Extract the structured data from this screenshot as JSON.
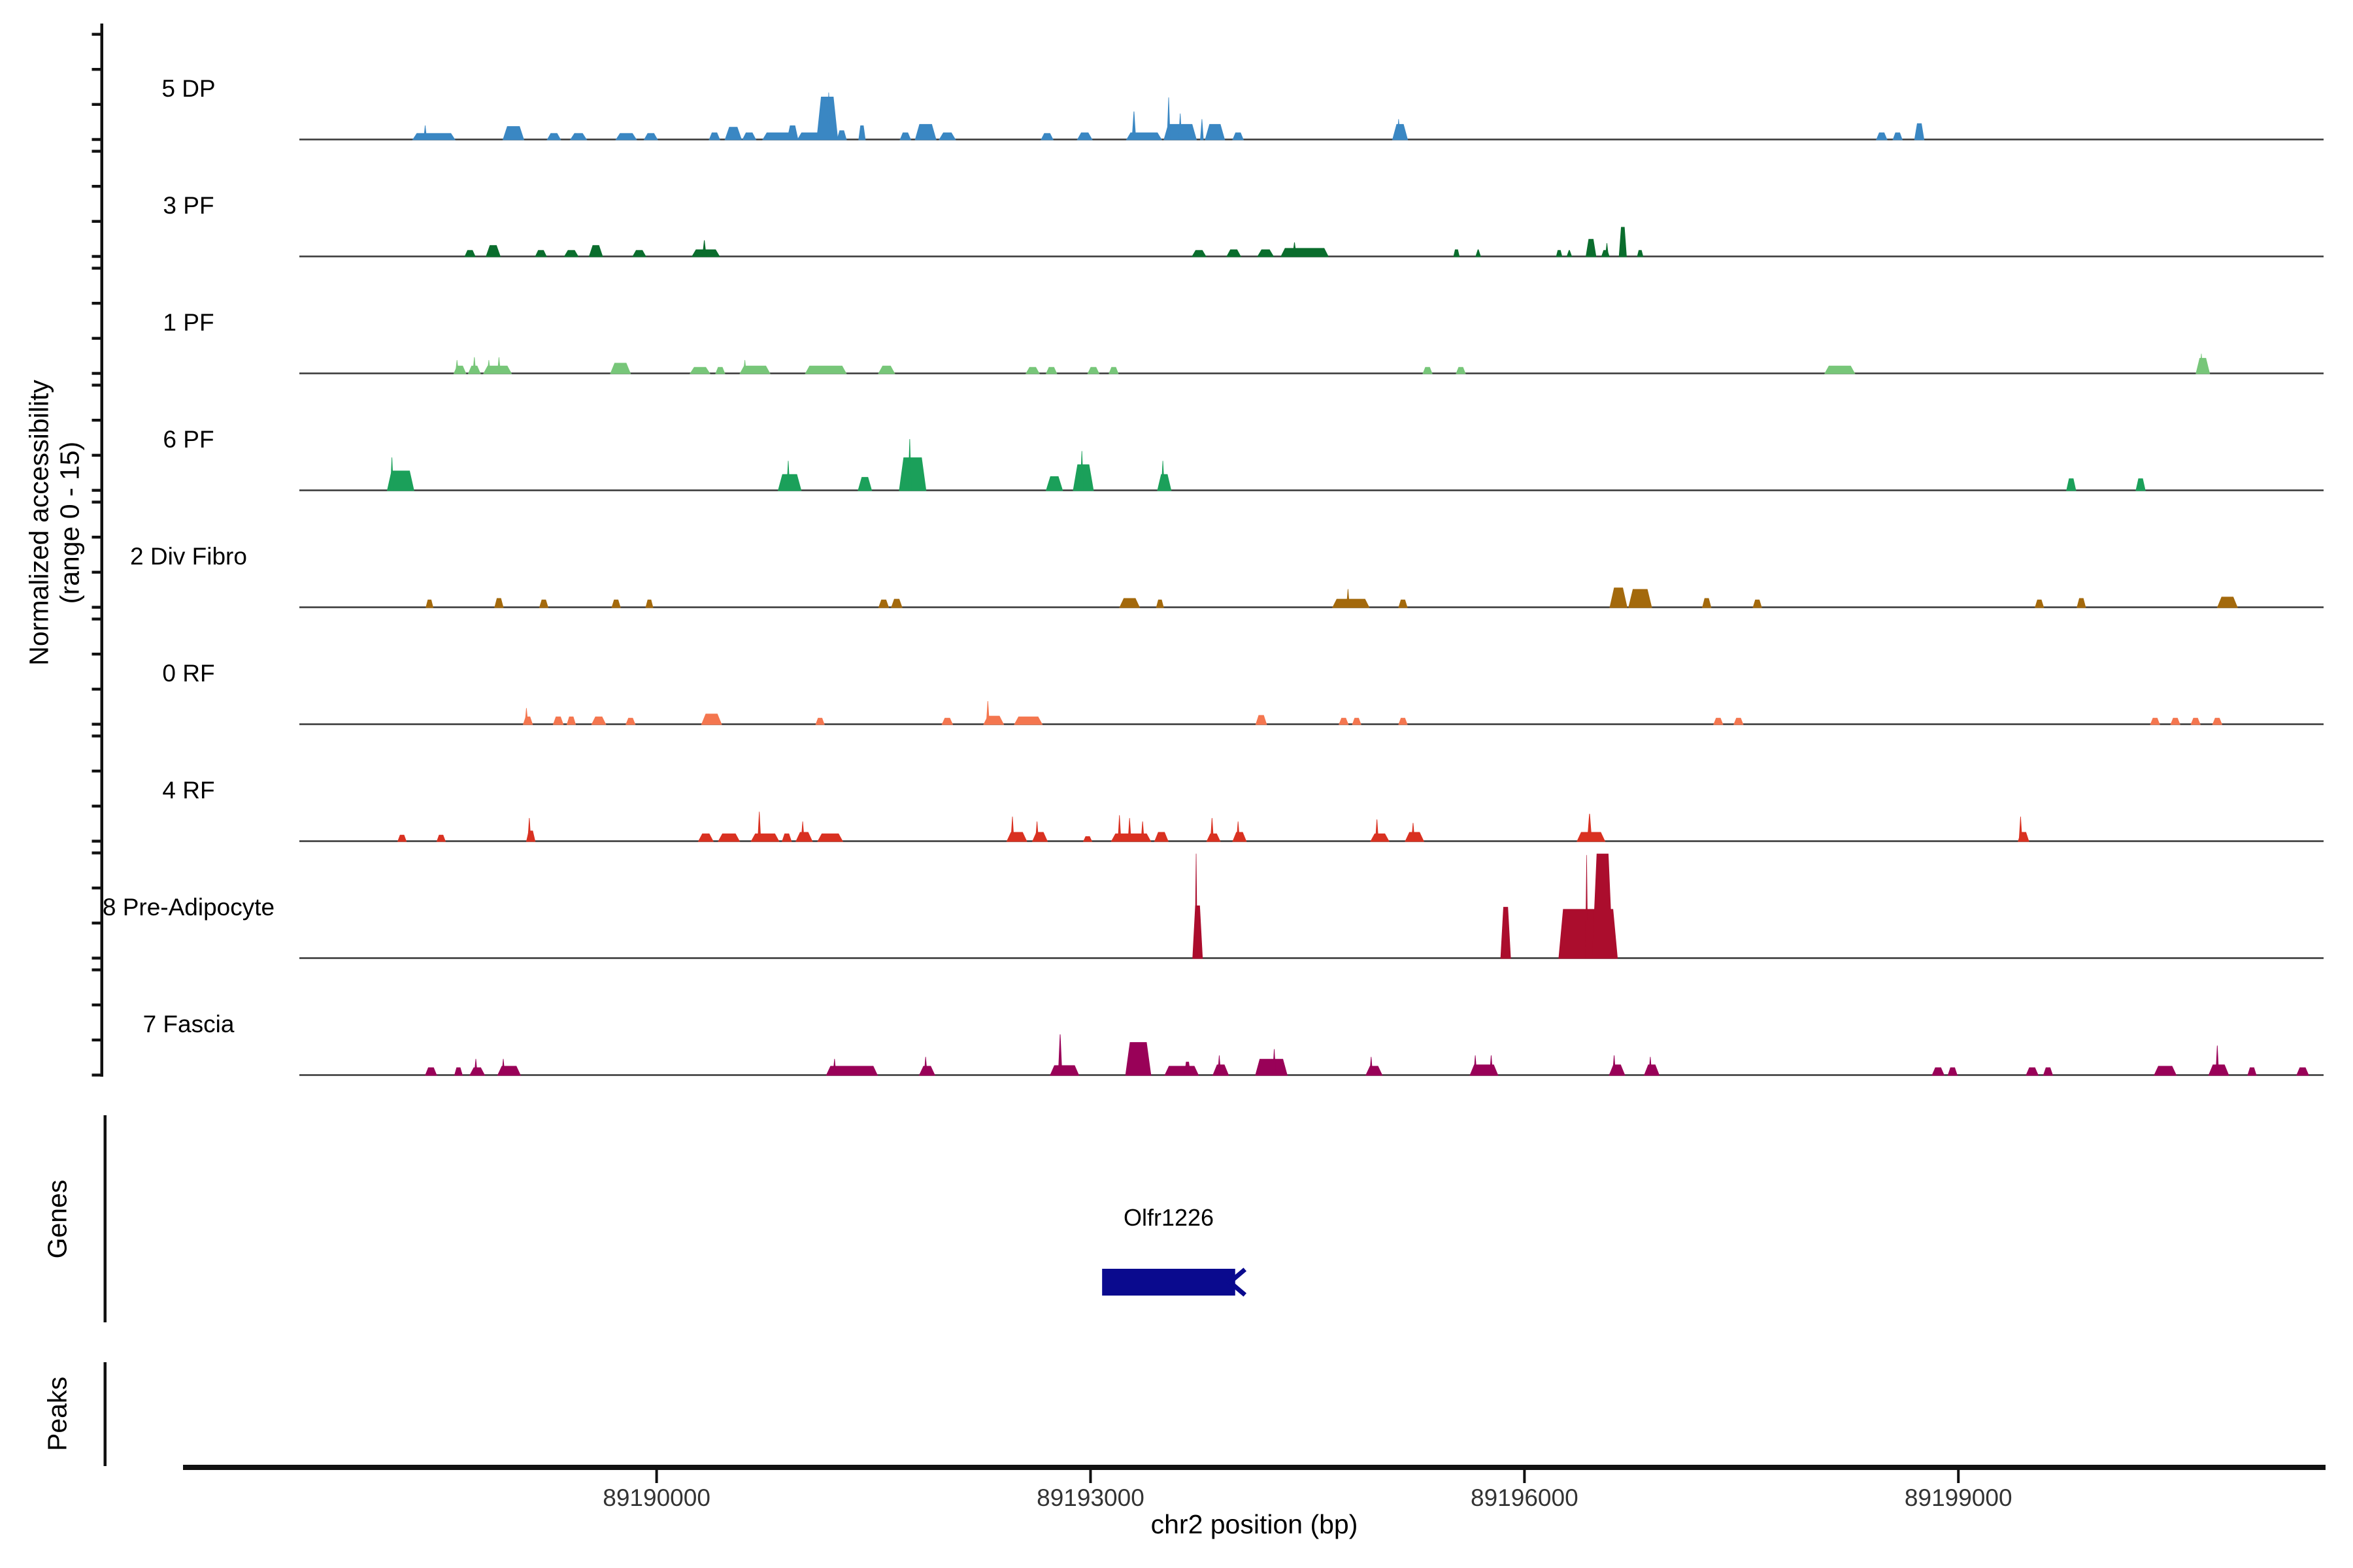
{
  "figure": {
    "background": "#ffffff"
  },
  "y_axis": {
    "label_line1": "Normalized accessibility",
    "label_line2": "(range 0 - 15)",
    "range_min": 0,
    "range_max": 15,
    "ticks_per_track": [
      0,
      5,
      10,
      15
    ]
  },
  "x_axis": {
    "title": "chr2 position (bp)",
    "ticks": [
      "89190000",
      "89193000",
      "89196000",
      "89199000"
    ]
  },
  "sections": {
    "genes_label": "Genes",
    "peaks_label": "Peaks"
  },
  "gene": {
    "name": "Olfr1226",
    "start_bp": 89193080,
    "end_bp": 89194000,
    "strand": "-",
    "color": "#0a0a8e"
  },
  "peaks_track": {
    "label": "Peaks",
    "features": []
  },
  "chart_data": {
    "type": "area",
    "title": "",
    "xlabel": "chr2 position (bp)",
    "ylabel": "Normalized accessibility (range 0 - 15)",
    "region": {
      "chrom": "chr2",
      "start": 89187530,
      "end": 89201525
    },
    "x_ticks": [
      89190000,
      89193000,
      89196000,
      89199000
    ],
    "ylim_per_track": [
      0,
      15
    ],
    "legend": "none",
    "grid": false,
    "note": "peaks encoded as [bp_center, bp_width, height_0_to_15]",
    "tracks": [
      {
        "label": "5 DP",
        "color": "#3a87c3",
        "peaks": [
          [
            89188460,
            300,
            0.9
          ],
          [
            89188400,
            25,
            2.0
          ],
          [
            89189010,
            150,
            1.9
          ],
          [
            89189290,
            100,
            0.9
          ],
          [
            89189460,
            120,
            0.9
          ],
          [
            89189790,
            150,
            0.9
          ],
          [
            89189960,
            100,
            0.9
          ],
          [
            89190400,
            80,
            1.0
          ],
          [
            89190530,
            120,
            1.8
          ],
          [
            89190640,
            100,
            1.0
          ],
          [
            89190840,
            220,
            1.0
          ],
          [
            89190940,
            80,
            2.0
          ],
          [
            89191060,
            180,
            1.0
          ],
          [
            89191180,
            150,
            6.1
          ],
          [
            89191190,
            25,
            6.7
          ],
          [
            89191280,
            70,
            1.3
          ],
          [
            89191420,
            50,
            2.0
          ],
          [
            89191720,
            80,
            1.0
          ],
          [
            89191860,
            150,
            2.2
          ],
          [
            89192010,
            120,
            1.0
          ],
          [
            89192700,
            90,
            0.9
          ],
          [
            89192960,
            110,
            1.0
          ],
          [
            89193370,
            250,
            1.0
          ],
          [
            89193300,
            30,
            4.0
          ],
          [
            89193620,
            230,
            2.2
          ],
          [
            89193540,
            25,
            6.0
          ],
          [
            89193620,
            25,
            3.7
          ],
          [
            89193770,
            25,
            2.9
          ],
          [
            89193860,
            140,
            2.2
          ],
          [
            89194020,
            80,
            1.0
          ],
          [
            89195140,
            110,
            2.2
          ],
          [
            89195130,
            25,
            2.9
          ],
          [
            89198470,
            80,
            1.0
          ],
          [
            89198580,
            70,
            1.0
          ],
          [
            89198730,
            70,
            2.3
          ]
        ]
      },
      {
        "label": "3 PF",
        "color": "#0a6d2d",
        "peaks": [
          [
            89188710,
            80,
            0.9
          ],
          [
            89188870,
            105,
            1.6
          ],
          [
            89189200,
            85,
            0.9
          ],
          [
            89189410,
            105,
            0.9
          ],
          [
            89189580,
            100,
            1.6
          ],
          [
            89189880,
            100,
            0.9
          ],
          [
            89190340,
            200,
            1.0
          ],
          [
            89190330,
            30,
            2.3
          ],
          [
            89193750,
            105,
            0.9
          ],
          [
            89193990,
            105,
            1.0
          ],
          [
            89194210,
            120,
            1.0
          ],
          [
            89194480,
            335,
            1.2
          ],
          [
            89194410,
            30,
            2.0
          ],
          [
            89195530,
            45,
            1.0
          ],
          [
            89195680,
            40,
            1.0
          ],
          [
            89196240,
            45,
            0.9
          ],
          [
            89196310,
            40,
            0.9
          ],
          [
            89196460,
            75,
            2.5
          ],
          [
            89196560,
            60,
            0.9
          ],
          [
            89196570,
            25,
            1.9
          ],
          [
            89196680,
            55,
            4.2
          ],
          [
            89196800,
            45,
            0.9
          ]
        ]
      },
      {
        "label": "1 PF",
        "color": "#77c679",
        "peaks": [
          [
            89188640,
            90,
            1.1
          ],
          [
            89188620,
            25,
            1.9
          ],
          [
            89188740,
            90,
            1.1
          ],
          [
            89188740,
            25,
            2.3
          ],
          [
            89188900,
            200,
            1.1
          ],
          [
            89188840,
            25,
            1.9
          ],
          [
            89188910,
            25,
            2.3
          ],
          [
            89189750,
            145,
            1.5
          ],
          [
            89190300,
            145,
            0.9
          ],
          [
            89190440,
            70,
            0.9
          ],
          [
            89190680,
            215,
            1.1
          ],
          [
            89190610,
            25,
            1.9
          ],
          [
            89191170,
            290,
            1.1
          ],
          [
            89191590,
            120,
            1.1
          ],
          [
            89192600,
            100,
            0.9
          ],
          [
            89192730,
            80,
            0.9
          ],
          [
            89193020,
            85,
            0.9
          ],
          [
            89193160,
            70,
            0.9
          ],
          [
            89195330,
            70,
            0.9
          ],
          [
            89195560,
            70,
            0.9
          ],
          [
            89198180,
            215,
            1.1
          ],
          [
            89200690,
            100,
            2.2
          ],
          [
            89200680,
            25,
            2.8
          ]
        ]
      },
      {
        "label": "6 PF",
        "color": "#1ba05a",
        "peaks": [
          [
            89188230,
            190,
            2.8
          ],
          [
            89188170,
            25,
            4.7
          ],
          [
            89190920,
            165,
            2.3
          ],
          [
            89190910,
            25,
            4.2
          ],
          [
            89191440,
            100,
            1.9
          ],
          [
            89191770,
            190,
            4.7
          ],
          [
            89191750,
            25,
            7.3
          ],
          [
            89192750,
            120,
            2.0
          ],
          [
            89192950,
            145,
            3.7
          ],
          [
            89192940,
            25,
            5.6
          ],
          [
            89193510,
            100,
            2.3
          ],
          [
            89193500,
            25,
            4.2
          ],
          [
            89199780,
            70,
            1.7
          ],
          [
            89200260,
            70,
            1.7
          ]
        ]
      },
      {
        "label": "2 Div Fibro",
        "color": "#a3690c",
        "peaks": [
          [
            89188430,
            55,
            1.1
          ],
          [
            89188910,
            65,
            1.3
          ],
          [
            89189220,
            65,
            1.1
          ],
          [
            89189720,
            65,
            1.1
          ],
          [
            89189950,
            55,
            1.1
          ],
          [
            89191570,
            75,
            1.1
          ],
          [
            89191660,
            80,
            1.2
          ],
          [
            89193270,
            145,
            1.3
          ],
          [
            89193480,
            55,
            1.1
          ],
          [
            89194800,
            260,
            1.2
          ],
          [
            89194780,
            25,
            2.6
          ],
          [
            89195160,
            65,
            1.1
          ],
          [
            89196650,
            125,
            2.8
          ],
          [
            89196800,
            165,
            2.6
          ],
          [
            89197260,
            65,
            1.3
          ],
          [
            89197610,
            65,
            1.1
          ],
          [
            89199560,
            65,
            1.1
          ],
          [
            89199850,
            65,
            1.3
          ],
          [
            89200860,
            145,
            1.5
          ]
        ]
      },
      {
        "label": "0 RF",
        "color": "#f4764f",
        "peaks": [
          [
            89189110,
            70,
            1.1
          ],
          [
            89189100,
            25,
            2.3
          ],
          [
            89189320,
            75,
            1.1
          ],
          [
            89189410,
            65,
            1.1
          ],
          [
            89189600,
            105,
            1.1
          ],
          [
            89189820,
            70,
            0.9
          ],
          [
            89190380,
            145,
            1.5
          ],
          [
            89191130,
            65,
            0.9
          ],
          [
            89192010,
            80,
            0.9
          ],
          [
            89192330,
            145,
            1.2
          ],
          [
            89192290,
            25,
            3.3
          ],
          [
            89192570,
            200,
            1.1
          ],
          [
            89194180,
            80,
            1.3
          ],
          [
            89194750,
            70,
            0.9
          ],
          [
            89194840,
            65,
            0.9
          ],
          [
            89195160,
            65,
            0.9
          ],
          [
            89197340,
            70,
            0.9
          ],
          [
            89197480,
            70,
            0.9
          ],
          [
            89200360,
            70,
            0.9
          ],
          [
            89200500,
            70,
            0.9
          ],
          [
            89200640,
            70,
            0.9
          ],
          [
            89200790,
            70,
            0.9
          ]
        ]
      },
      {
        "label": "4 RF",
        "color": "#d93121",
        "peaks": [
          [
            89188240,
            65,
            0.9
          ],
          [
            89188510,
            65,
            0.9
          ],
          [
            89189130,
            65,
            1.5
          ],
          [
            89189120,
            25,
            3.3
          ],
          [
            89190340,
            110,
            1.1
          ],
          [
            89190500,
            155,
            1.1
          ],
          [
            89190750,
            200,
            1.1
          ],
          [
            89190710,
            25,
            4.2
          ],
          [
            89190900,
            70,
            1.1
          ],
          [
            89191020,
            120,
            1.3
          ],
          [
            89191010,
            25,
            2.8
          ],
          [
            89191200,
            180,
            1.1
          ],
          [
            89192490,
            145,
            1.3
          ],
          [
            89192460,
            25,
            3.5
          ],
          [
            89192650,
            110,
            1.3
          ],
          [
            89192630,
            25,
            2.8
          ],
          [
            89192980,
            65,
            0.7
          ],
          [
            89193280,
            280,
            1.1
          ],
          [
            89193200,
            25,
            3.7
          ],
          [
            89193270,
            25,
            3.3
          ],
          [
            89193360,
            25,
            2.8
          ],
          [
            89193490,
            100,
            1.3
          ],
          [
            89193850,
            100,
            1.1
          ],
          [
            89193840,
            25,
            3.3
          ],
          [
            89194030,
            100,
            1.3
          ],
          [
            89194020,
            25,
            2.8
          ],
          [
            89195000,
            135,
            1.1
          ],
          [
            89194980,
            25,
            3.1
          ],
          [
            89195240,
            135,
            1.3
          ],
          [
            89195230,
            25,
            2.6
          ],
          [
            89196460,
            200,
            1.3
          ],
          [
            89196450,
            35,
            3.9
          ],
          [
            89199450,
            80,
            1.3
          ],
          [
            89199430,
            25,
            3.5
          ]
        ]
      },
      {
        "label": "8 Pre-Adipocyte",
        "color": "#ab0d2d",
        "peaks": [
          [
            89193740,
            72,
            7.5
          ],
          [
            89193730,
            20,
            14.9
          ],
          [
            89195870,
            72,
            7.3
          ],
          [
            89196440,
            410,
            7.0
          ],
          [
            89196540,
            145,
            14.9
          ],
          [
            89196430,
            20,
            14.7
          ]
        ]
      },
      {
        "label": "7 Fascia",
        "color": "#990158",
        "peaks": [
          [
            89188440,
            85,
            1.1
          ],
          [
            89188630,
            60,
            1.1
          ],
          [
            89188760,
            110,
            1.1
          ],
          [
            89188750,
            25,
            2.3
          ],
          [
            89188980,
            165,
            1.3
          ],
          [
            89188940,
            25,
            2.3
          ],
          [
            89191350,
            360,
            1.3
          ],
          [
            89191230,
            25,
            2.3
          ],
          [
            89191870,
            115,
            1.3
          ],
          [
            89191860,
            25,
            2.6
          ],
          [
            89192820,
            205,
            1.4
          ],
          [
            89192790,
            30,
            5.8
          ],
          [
            89193330,
            180,
            4.7
          ],
          [
            89193630,
            240,
            1.3
          ],
          [
            89193670,
            45,
            1.9
          ],
          [
            89193900,
            115,
            1.5
          ],
          [
            89193890,
            25,
            2.8
          ],
          [
            89194250,
            225,
            2.3
          ],
          [
            89194270,
            25,
            3.7
          ],
          [
            89194960,
            120,
            1.3
          ],
          [
            89194940,
            25,
            2.6
          ],
          [
            89195720,
            200,
            1.5
          ],
          [
            89195660,
            25,
            2.8
          ],
          [
            89195770,
            25,
            2.8
          ],
          [
            89196640,
            115,
            1.5
          ],
          [
            89196620,
            25,
            2.8
          ],
          [
            89196880,
            110,
            1.5
          ],
          [
            89196870,
            25,
            2.6
          ],
          [
            89198860,
            90,
            1.1
          ],
          [
            89198960,
            70,
            1.1
          ],
          [
            89199510,
            90,
            1.1
          ],
          [
            89199620,
            70,
            1.1
          ],
          [
            89200430,
            160,
            1.3
          ],
          [
            89200800,
            145,
            1.5
          ],
          [
            89200790,
            25,
            4.2
          ],
          [
            89201030,
            65,
            1.1
          ],
          [
            89201380,
            90,
            1.1
          ]
        ]
      }
    ]
  }
}
